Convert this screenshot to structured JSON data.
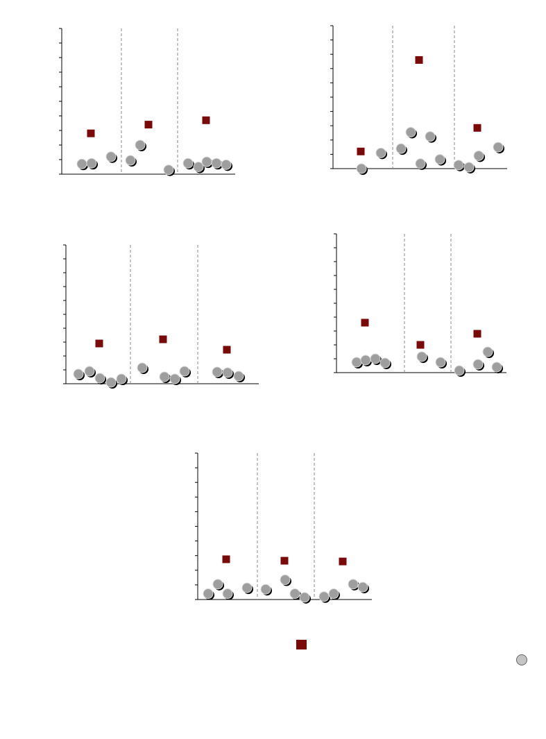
{
  "chart_data": [
    {
      "type": "scatter",
      "ylim": [
        0,
        10
      ],
      "yticks": [
        0,
        1,
        2,
        3,
        4,
        5,
        6,
        7,
        8,
        9,
        10
      ],
      "grid": false,
      "groups": [
        {
          "points": [
            0.7,
            0.75,
            1.2
          ],
          "mean": 2.8
        },
        {
          "points": [
            0.95,
            2.0,
            0.3
          ],
          "mean": 3.4
        },
        {
          "points": [
            0.75,
            0.5,
            0.85,
            0.75,
            0.65
          ],
          "mean": 3.7
        }
      ]
    },
    {
      "type": "scatter",
      "ylim": [
        0,
        10
      ],
      "yticks": [
        0,
        1,
        2,
        3,
        4,
        5,
        6,
        7,
        8,
        9,
        10
      ],
      "grid": false,
      "groups": [
        {
          "points": [
            0.0,
            1.1
          ],
          "mean": 1.2
        },
        {
          "points": [
            1.4,
            2.55,
            0.35,
            2.25
          ],
          "mean": 7.6
        },
        {
          "points": [
            0.65,
            0.25,
            0.1,
            0.9,
            1.5
          ],
          "mean": 2.85
        }
      ]
    },
    {
      "type": "scatter",
      "ylim": [
        0,
        10
      ],
      "yticks": [
        0,
        1,
        2,
        3,
        4,
        5,
        6,
        7,
        8,
        9,
        10
      ],
      "grid": false,
      "groups": [
        {
          "points": [
            0.7,
            0.9,
            0.4,
            0.1,
            0.35
          ],
          "mean": 2.9
        },
        {
          "points": [
            1.15,
            0.5,
            0.35,
            0.9
          ],
          "mean": 3.2
        },
        {
          "points": [
            0.85,
            0.8,
            0.55
          ],
          "mean": 2.45
        }
      ]
    },
    {
      "type": "scatter",
      "ylim": [
        0,
        10
      ],
      "yticks": [
        0,
        1,
        2,
        3,
        4,
        5,
        6,
        7,
        8,
        9,
        10
      ],
      "grid": false,
      "groups": [
        {
          "points": [
            0.75,
            0.9,
            1.0,
            0.7
          ],
          "mean": 3.6
        },
        {
          "points": [
            1.15,
            0.75
          ],
          "mean": 2.0
        },
        {
          "points": [
            0.15,
            0.6,
            1.5,
            0.4
          ],
          "mean": 2.8
        }
      ]
    },
    {
      "type": "scatter",
      "ylim": [
        0,
        10
      ],
      "yticks": [
        0,
        1,
        2,
        3,
        4,
        5,
        6,
        7,
        8,
        9,
        10
      ],
      "grid": false,
      "groups": [
        {
          "points": [
            0.4,
            1.05,
            0.4
          ],
          "mean": 2.75
        },
        {
          "points": [
            0.8,
            0.7
          ],
          "mean": 2.65
        },
        {
          "points": [
            1.35,
            0.4,
            0.15
          ],
          "mean": 2.6
        },
        {
          "points": [
            0.2,
            0.4
          ],
          "mean": null
        },
        {
          "points": [
            1.05,
            0.85
          ],
          "mean": null
        }
      ]
    }
  ],
  "legend": {
    "placement": "bottom",
    "mean_marker_color": "#7a0a0a",
    "point_marker_color": "#9e9e9e"
  }
}
